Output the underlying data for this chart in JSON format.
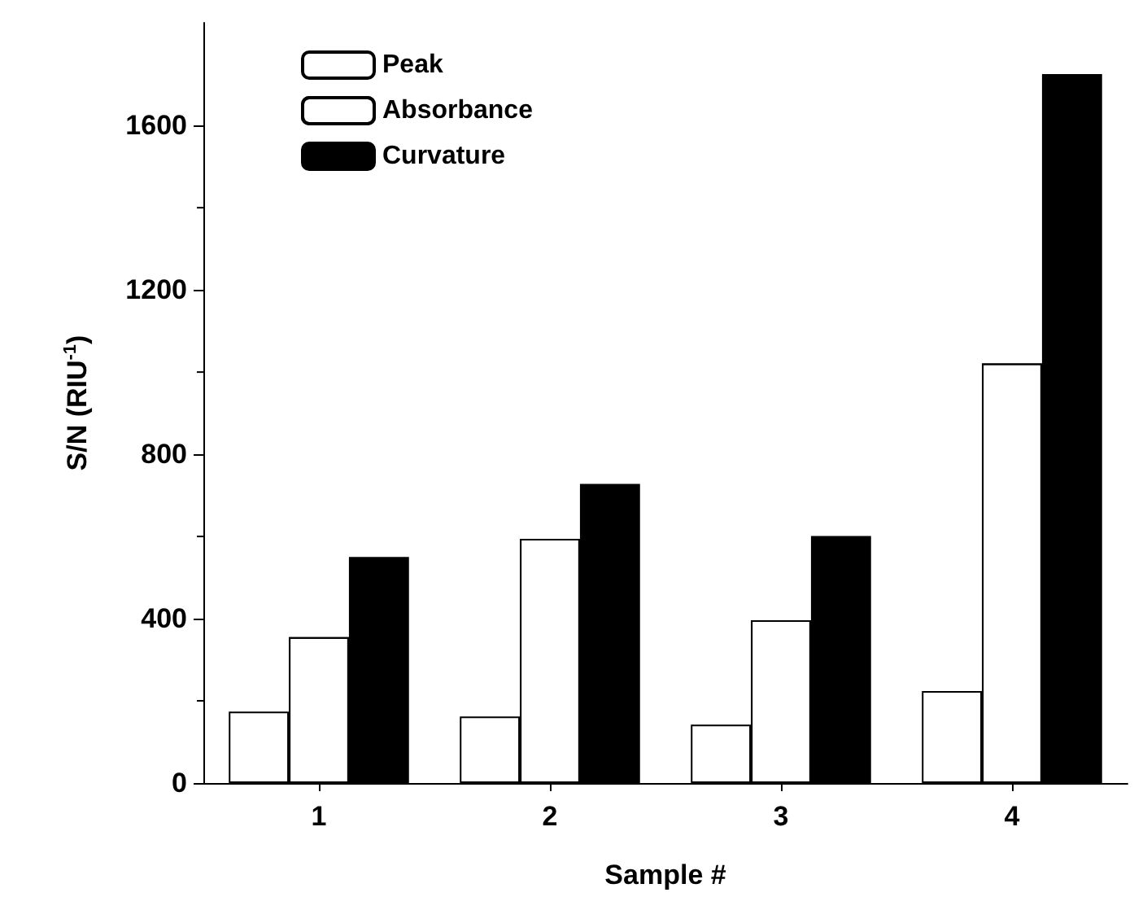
{
  "chart_data": {
    "type": "bar",
    "xlabel": "Sample #",
    "ylabel": "S/N (RIU$^{-1}$)",
    "categories": [
      "1",
      "2",
      "3",
      "4"
    ],
    "series": [
      {
        "name": "Peak",
        "color": "#ffffff",
        "values": [
          174,
          162,
          142,
          224
        ]
      },
      {
        "name": "Absorbance",
        "color": "#ffffff",
        "values": [
          355,
          594,
          396,
          1021
        ]
      },
      {
        "name": "Curvature",
        "color": "#000000",
        "values": [
          550,
          728,
          601,
          1725
        ]
      }
    ],
    "ylim": [
      0,
      1850
    ],
    "yticks": [
      0,
      400,
      800,
      1200,
      1600
    ],
    "grid": false,
    "legend": "top left"
  }
}
